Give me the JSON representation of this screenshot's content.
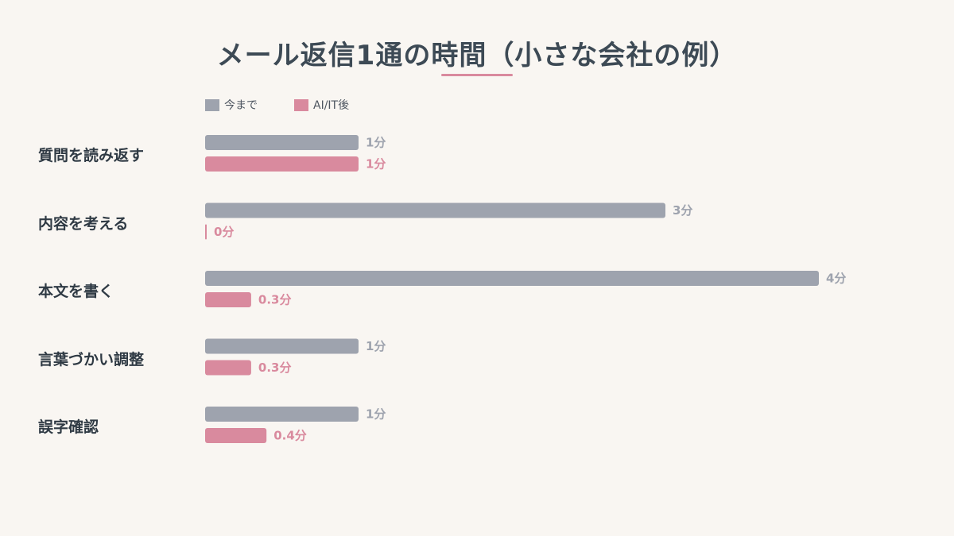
{
  "chart_data": {
    "type": "bar",
    "orientation": "horizontal",
    "title": "メール返信1通の時間（小さな会社の例）",
    "categories": [
      "質問を読み返す",
      "内容を考える",
      "本文を書く",
      "言葉づかい調整",
      "誤字確認"
    ],
    "series": [
      {
        "name": "今まで",
        "color": "#9ea3ae",
        "values": [
          1,
          3,
          4,
          1,
          1
        ],
        "labels": [
          "1分",
          "3分",
          "4分",
          "1分",
          "1分"
        ]
      },
      {
        "name": "AI/IT後",
        "color": "#d98a9e",
        "values": [
          1,
          0,
          0.3,
          0.3,
          0.4
        ],
        "labels": [
          "1分",
          "0分",
          "0.3分",
          "0.3分",
          "0.4分"
        ]
      }
    ],
    "xlim": [
      0,
      4
    ],
    "grid": false,
    "legend": "top-left"
  }
}
